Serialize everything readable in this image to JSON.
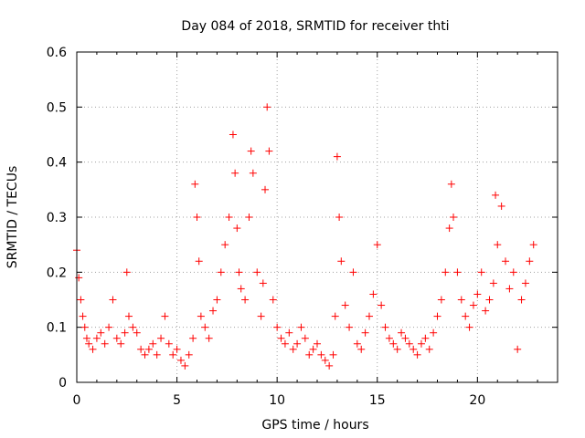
{
  "chart_data": {
    "type": "scatter",
    "title": "Day 084 of 2018, SRMTID for receiver thti",
    "xlabel": "GPS time / hours",
    "ylabel": "SRMTID / TECUs",
    "xlim": [
      0,
      24
    ],
    "ylim": [
      0,
      0.6
    ],
    "xticks": [
      0,
      5,
      10,
      15,
      20
    ],
    "yticks": [
      0,
      0.1,
      0.2,
      0.3,
      0.4,
      0.5,
      0.6
    ],
    "xtick_labels": [
      "0",
      "5",
      "10",
      "15",
      "20"
    ],
    "ytick_labels": [
      "0",
      "0.1",
      "0.2",
      "0.3",
      "0.4",
      "0.5",
      "0.6"
    ],
    "grid": true,
    "marker": "+",
    "series": [
      {
        "name": "SRMTID",
        "color": "#ff0000",
        "x": [
          0.0,
          0.1,
          0.2,
          0.3,
          0.4,
          0.5,
          0.6,
          0.8,
          1.0,
          1.2,
          1.4,
          1.6,
          1.8,
          2.0,
          2.2,
          2.4,
          2.5,
          2.6,
          2.8,
          3.0,
          3.2,
          3.4,
          3.6,
          3.8,
          4.0,
          4.2,
          4.4,
          4.6,
          4.8,
          5.0,
          5.2,
          5.4,
          5.6,
          5.8,
          5.9,
          6.0,
          6.1,
          6.2,
          6.4,
          6.6,
          6.8,
          7.0,
          7.2,
          7.4,
          7.6,
          7.8,
          7.9,
          8.0,
          8.1,
          8.2,
          8.4,
          8.6,
          8.7,
          8.8,
          9.0,
          9.2,
          9.3,
          9.4,
          9.5,
          9.6,
          9.8,
          10.0,
          10.2,
          10.4,
          10.6,
          10.8,
          11.0,
          11.2,
          11.4,
          11.6,
          11.8,
          12.0,
          12.2,
          12.4,
          12.6,
          12.8,
          12.9,
          13.0,
          13.1,
          13.2,
          13.4,
          13.6,
          13.8,
          14.0,
          14.2,
          14.4,
          14.6,
          14.8,
          15.0,
          15.2,
          15.4,
          15.6,
          15.8,
          16.0,
          16.2,
          16.4,
          16.6,
          16.8,
          17.0,
          17.2,
          17.4,
          17.6,
          17.8,
          18.0,
          18.2,
          18.4,
          18.6,
          18.7,
          18.8,
          19.0,
          19.2,
          19.4,
          19.6,
          19.8,
          20.0,
          20.2,
          20.4,
          20.6,
          20.8,
          20.9,
          21.0,
          21.2,
          21.4,
          21.6,
          21.8,
          22.0,
          22.2,
          22.4,
          22.6,
          22.8
        ],
        "y": [
          0.24,
          0.19,
          0.15,
          0.12,
          0.1,
          0.08,
          0.07,
          0.06,
          0.08,
          0.09,
          0.07,
          0.1,
          0.15,
          0.08,
          0.07,
          0.09,
          0.2,
          0.12,
          0.1,
          0.09,
          0.06,
          0.05,
          0.06,
          0.07,
          0.05,
          0.08,
          0.12,
          0.07,
          0.05,
          0.06,
          0.04,
          0.03,
          0.05,
          0.08,
          0.36,
          0.3,
          0.22,
          0.12,
          0.1,
          0.08,
          0.13,
          0.15,
          0.2,
          0.25,
          0.3,
          0.45,
          0.38,
          0.28,
          0.2,
          0.17,
          0.15,
          0.3,
          0.42,
          0.38,
          0.2,
          0.12,
          0.18,
          0.35,
          0.5,
          0.42,
          0.15,
          0.1,
          0.08,
          0.07,
          0.09,
          0.06,
          0.07,
          0.1,
          0.08,
          0.05,
          0.06,
          0.07,
          0.05,
          0.04,
          0.03,
          0.05,
          0.12,
          0.41,
          0.3,
          0.22,
          0.14,
          0.1,
          0.2,
          0.07,
          0.06,
          0.09,
          0.12,
          0.16,
          0.25,
          0.14,
          0.1,
          0.08,
          0.07,
          0.06,
          0.09,
          0.08,
          0.07,
          0.06,
          0.05,
          0.07,
          0.08,
          0.06,
          0.09,
          0.12,
          0.15,
          0.2,
          0.28,
          0.36,
          0.3,
          0.2,
          0.15,
          0.12,
          0.1,
          0.14,
          0.16,
          0.2,
          0.13,
          0.15,
          0.18,
          0.34,
          0.25,
          0.32,
          0.22,
          0.17,
          0.2,
          0.06,
          0.15,
          0.18,
          0.22,
          0.25
        ]
      }
    ]
  }
}
